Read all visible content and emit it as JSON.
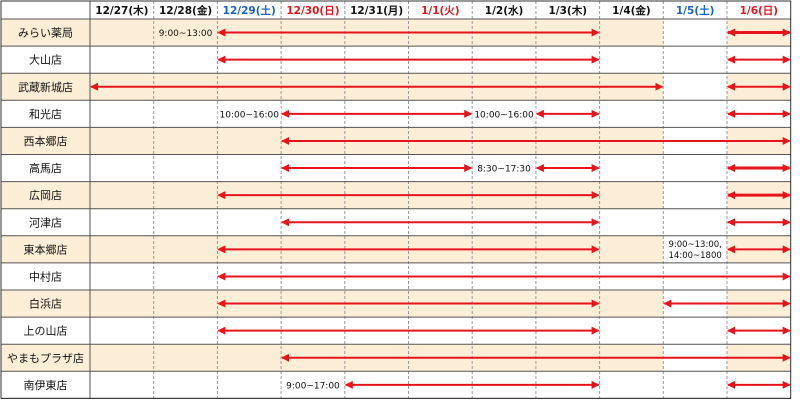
{
  "colors": {
    "stripe": "#fdeed7",
    "grid": "#9a9a9a",
    "arrow": "#e8141c",
    "saturday": "#1a62c8",
    "holiday": "#e8141c",
    "text": "#111111"
  },
  "dates": [
    {
      "label": "12/27(木)",
      "kind": "normal"
    },
    {
      "label": "12/28(金)",
      "kind": "normal"
    },
    {
      "label": "12/29(土)",
      "kind": "saturday"
    },
    {
      "label": "12/30(日)",
      "kind": "holiday"
    },
    {
      "label": "12/31(月)",
      "kind": "normal"
    },
    {
      "label": "1/1(火)",
      "kind": "holiday"
    },
    {
      "label": "1/2(水)",
      "kind": "normal"
    },
    {
      "label": "1/3(木)",
      "kind": "normal"
    },
    {
      "label": "1/4(金)",
      "kind": "normal"
    },
    {
      "label": "1/5(土)",
      "kind": "saturday"
    },
    {
      "label": "1/6(日)",
      "kind": "holiday"
    }
  ],
  "stores": [
    {
      "name": "みらい薬局",
      "segments": [
        {
          "from": 2,
          "to": 8,
          "note": "9:00~13:00",
          "note_col": 1
        },
        {
          "from": 10,
          "to": 11,
          "thick": true
        }
      ]
    },
    {
      "name": "大山店",
      "segments": [
        {
          "from": 2,
          "to": 8
        },
        {
          "from": 10,
          "to": 11
        }
      ]
    },
    {
      "name": "武蔵新城店",
      "segments": [
        {
          "from": 0,
          "to": 9
        },
        {
          "from": 10,
          "to": 11
        }
      ]
    },
    {
      "name": "和光店",
      "segments": [
        {
          "from": 3,
          "to": 6,
          "note": "10:00~16:00",
          "note_col": 2
        },
        {
          "from": 7,
          "to": 8,
          "note": "10:00~16:00",
          "note_col": 6
        },
        {
          "from": 10,
          "to": 11
        }
      ]
    },
    {
      "name": "西本郷店",
      "segments": [
        {
          "from": 3,
          "to": 11
        }
      ]
    },
    {
      "name": "高馬店",
      "segments": [
        {
          "from": 3,
          "to": 6
        },
        {
          "from": 7,
          "to": 8,
          "note": "8:30~17:30",
          "note_col": 6
        },
        {
          "from": 10,
          "to": 11,
          "thick": true
        }
      ]
    },
    {
      "name": "広岡店",
      "segments": [
        {
          "from": 2,
          "to": 8
        },
        {
          "from": 10,
          "to": 11,
          "thick": true
        }
      ]
    },
    {
      "name": "河津店",
      "segments": [
        {
          "from": 3,
          "to": 8
        },
        {
          "from": 10,
          "to": 11
        }
      ]
    },
    {
      "name": "東本郷店",
      "segments": [
        {
          "from": 2,
          "to": 8
        },
        {
          "from": 10,
          "to": 11
        }
      ],
      "notes": [
        {
          "col": 9,
          "lines": [
            "9:00~13:00,",
            "14:00~1800"
          ]
        }
      ]
    },
    {
      "name": "中村店",
      "segments": [
        {
          "from": 2,
          "to": 11
        }
      ]
    },
    {
      "name": "白浜店",
      "segments": [
        {
          "from": 2,
          "to": 8
        },
        {
          "from": 9,
          "to": 11
        }
      ]
    },
    {
      "name": "上の山店",
      "segments": [
        {
          "from": 2,
          "to": 8
        },
        {
          "from": 10,
          "to": 11
        }
      ]
    },
    {
      "name": "やまもプラザ店",
      "segments": [
        {
          "from": 3,
          "to": 11
        }
      ]
    },
    {
      "name": "南伊東店",
      "segments": [
        {
          "from": 4,
          "to": 8,
          "note": "9:00~17:00",
          "note_col": 3
        },
        {
          "from": 10,
          "to": 11
        }
      ]
    }
  ]
}
